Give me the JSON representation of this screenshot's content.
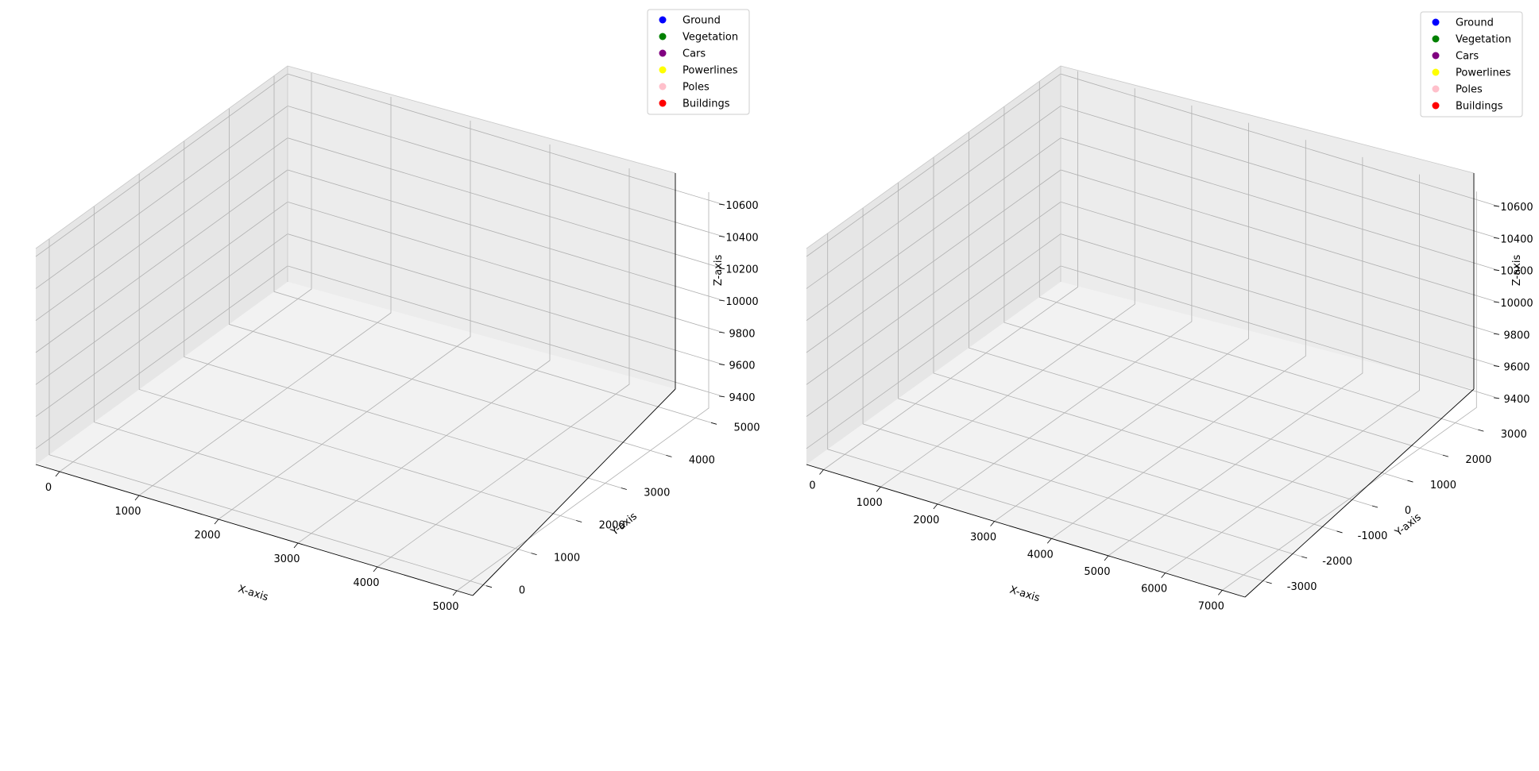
{
  "chart_data": [
    {
      "type": "scatter",
      "title": "",
      "xlabel": "X-axis",
      "ylabel": "Y-axis",
      "zlabel": "Z-axis",
      "xlim": [
        -300,
        5200
      ],
      "ylim": [
        -300,
        5300
      ],
      "zlim": [
        9300,
        10650
      ],
      "xticks": [
        0,
        1000,
        2000,
        3000,
        4000,
        5000
      ],
      "yticks": [
        0,
        1000,
        2000,
        3000,
        4000,
        5000
      ],
      "zticks": [
        9400,
        9600,
        9800,
        10000,
        10200,
        10400,
        10600
      ],
      "legend_position": "top-right",
      "grid": true,
      "series": [
        {
          "name": "Ground",
          "color": "#0000ff"
        },
        {
          "name": "Vegetation",
          "color": "#008000"
        },
        {
          "name": "Cars",
          "color": "#800080"
        },
        {
          "name": "Powerlines",
          "color": "#ffff00"
        },
        {
          "name": "Poles",
          "color": "#ffc0cb"
        },
        {
          "name": "Buildings",
          "color": "#ff0000"
        }
      ]
    },
    {
      "type": "scatter",
      "title": "",
      "xlabel": "X-axis",
      "ylabel": "Y-axis",
      "zlabel": "Z-axis",
      "xlim": [
        -300,
        7400
      ],
      "ylim": [
        -3600,
        3600
      ],
      "zlim": [
        9300,
        10650
      ],
      "xticks": [
        0,
        1000,
        2000,
        3000,
        4000,
        5000,
        6000,
        7000
      ],
      "yticks": [
        -3000,
        -2000,
        -1000,
        0,
        1000,
        2000,
        3000
      ],
      "zticks": [
        9400,
        9600,
        9800,
        10000,
        10200,
        10400,
        10600
      ],
      "legend_position": "top-right",
      "grid": true,
      "series": [
        {
          "name": "Ground",
          "color": "#0000ff"
        },
        {
          "name": "Vegetation",
          "color": "#008000"
        },
        {
          "name": "Cars",
          "color": "#800080"
        },
        {
          "name": "Powerlines",
          "color": "#ffff00"
        },
        {
          "name": "Poles",
          "color": "#ffc0cb"
        },
        {
          "name": "Buildings",
          "color": "#ff0000"
        }
      ]
    }
  ]
}
